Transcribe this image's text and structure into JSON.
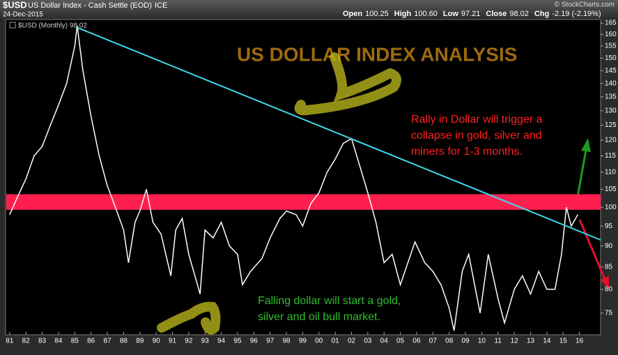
{
  "chart_data": {
    "type": "line",
    "symbol": "$USD",
    "title": "US Dollar Index - Cash Settle (EOD)",
    "exchange": "ICE",
    "date": "24-Dec-2015",
    "quote": [
      {
        "label": "Open",
        "value": "100.25"
      },
      {
        "label": "High",
        "value": "100.60"
      },
      {
        "label": "Low",
        "value": "97.21"
      },
      {
        "label": "Close",
        "value": "98.02"
      },
      {
        "label": "Chg",
        "value": "-2.19 (-2.19%)"
      }
    ],
    "credit": "© StockCharts.com",
    "heading": "US DOLLAR INDEX ANALYSIS",
    "annotations": [
      {
        "lines": [
          "Rally in Dollar will trigger a",
          "collapse in gold, silver and",
          "miners for 1-3 months."
        ],
        "color": "#ff2020"
      },
      {
        "lines": [
          "Falling dollar will start a gold,",
          "silver and oil bull market."
        ],
        "color": "#2ebd2e"
      }
    ],
    "log_scale": true,
    "grid": false,
    "x": [
      1981.0,
      1981.5,
      1982.0,
      1982.5,
      1983.0,
      1983.5,
      1984.0,
      1984.5,
      1985.0,
      1985.15,
      1985.5,
      1986.0,
      1986.5,
      1987.0,
      1987.5,
      1988.0,
      1988.3,
      1988.7,
      1989.0,
      1989.4,
      1989.8,
      1990.3,
      1990.9,
      1991.2,
      1991.6,
      1992.0,
      1992.7,
      1993.0,
      1993.5,
      1994.0,
      1994.5,
      1995.0,
      1995.3,
      1995.8,
      1996.5,
      1997.0,
      1997.6,
      1998.0,
      1998.6,
      1999.0,
      1999.5,
      2000.0,
      2000.5,
      2001.0,
      2001.5,
      2002.0,
      2002.5,
      2003.0,
      2003.5,
      2004.0,
      2004.5,
      2005.0,
      2005.9,
      2006.5,
      2007.0,
      2007.5,
      2008.0,
      2008.3,
      2008.8,
      2009.2,
      2009.9,
      2010.4,
      2011.0,
      2011.4,
      2012.0,
      2012.5,
      2013.0,
      2013.5,
      2014.0,
      2014.5,
      2014.9,
      2015.2,
      2015.5,
      2015.9
    ],
    "series": [
      {
        "name": "$USD (Monthly) 98.02",
        "color": "#ffffff",
        "values": [
          98,
          103,
          108,
          115,
          118,
          125,
          132,
          140,
          155,
          163.8,
          145,
          128,
          115,
          106,
          100,
          94,
          86,
          96,
          99,
          105,
          96,
          93,
          83,
          94,
          97,
          88,
          79,
          94,
          92,
          96,
          90,
          88,
          81,
          84,
          87,
          92,
          97,
          99,
          98,
          95,
          101,
          104,
          110,
          114,
          119,
          120.5,
          112,
          104,
          96,
          86,
          88,
          81,
          91,
          86,
          84,
          81,
          76,
          71.5,
          84,
          88,
          75,
          88,
          78,
          73,
          80,
          83,
          79,
          84,
          80,
          80,
          88,
          100,
          95,
          98
        ]
      }
    ],
    "band": {
      "from": 99.3,
      "to": 103.6,
      "color": "#ff1f4f"
    },
    "trendline": {
      "x": [
        1985.15,
        2017.3
      ],
      "y": [
        163,
        91.5
      ],
      "color": "#3fd8ef"
    },
    "xlim": [
      1980.75,
      2017.3
    ],
    "xticks": [
      {
        "value": 1981,
        "label": "81"
      },
      {
        "value": 1982,
        "label": "82"
      },
      {
        "value": 1983,
        "label": "83"
      },
      {
        "value": 1984,
        "label": "84"
      },
      {
        "value": 1985,
        "label": "85"
      },
      {
        "value": 1986,
        "label": "86"
      },
      {
        "value": 1987,
        "label": "87"
      },
      {
        "value": 1988,
        "label": "88"
      },
      {
        "value": 1989,
        "label": "89"
      },
      {
        "value": 1990,
        "label": "90"
      },
      {
        "value": 1991,
        "label": "91"
      },
      {
        "value": 1992,
        "label": "92"
      },
      {
        "value": 1993,
        "label": "93"
      },
      {
        "value": 1994,
        "label": "94"
      },
      {
        "value": 1995,
        "label": "95"
      },
      {
        "value": 1996,
        "label": "96"
      },
      {
        "value": 1997,
        "label": "97"
      },
      {
        "value": 1998,
        "label": "98"
      },
      {
        "value": 1999,
        "label": "99"
      },
      {
        "value": 2000,
        "label": "00"
      },
      {
        "value": 2001,
        "label": "01"
      },
      {
        "value": 2002,
        "label": "02"
      },
      {
        "value": 2003,
        "label": "03"
      },
      {
        "value": 2004,
        "label": "04"
      },
      {
        "value": 2005,
        "label": "05"
      },
      {
        "value": 2006,
        "label": "06"
      },
      {
        "value": 2007,
        "label": "07"
      },
      {
        "value": 2008,
        "label": "08"
      },
      {
        "value": 2009,
        "label": "09"
      },
      {
        "value": 2010,
        "label": "10"
      },
      {
        "value": 2011,
        "label": "11"
      },
      {
        "value": 2012,
        "label": "12"
      },
      {
        "value": 2013,
        "label": "13"
      },
      {
        "value": 2014,
        "label": "14"
      },
      {
        "value": 2015,
        "label": "15"
      },
      {
        "value": 2016,
        "label": "16"
      }
    ],
    "ylim": [
      70.7,
      166.6
    ],
    "yticks": [
      75,
      80,
      85,
      90,
      95,
      100,
      105,
      110,
      115,
      120,
      125,
      130,
      135,
      140,
      145,
      150,
      155,
      160,
      165
    ]
  }
}
